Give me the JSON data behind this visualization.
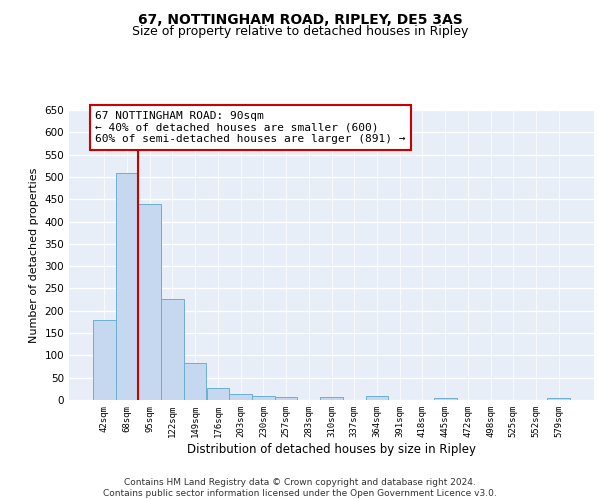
{
  "title1": "67, NOTTINGHAM ROAD, RIPLEY, DE5 3AS",
  "title2": "Size of property relative to detached houses in Ripley",
  "xlabel": "Distribution of detached houses by size in Ripley",
  "ylabel": "Number of detached properties",
  "categories": [
    "42sqm",
    "68sqm",
    "95sqm",
    "122sqm",
    "149sqm",
    "176sqm",
    "203sqm",
    "230sqm",
    "257sqm",
    "283sqm",
    "310sqm",
    "337sqm",
    "364sqm",
    "391sqm",
    "418sqm",
    "445sqm",
    "472sqm",
    "498sqm",
    "525sqm",
    "552sqm",
    "579sqm"
  ],
  "values": [
    180,
    508,
    440,
    226,
    84,
    28,
    14,
    9,
    7,
    0,
    7,
    0,
    8,
    0,
    0,
    5,
    0,
    0,
    0,
    0,
    5
  ],
  "bar_color": "#c5d8f0",
  "bar_edge_color": "#6baed6",
  "background_color": "#e8eef8",
  "grid_color": "#ffffff",
  "annotation_text": "67 NOTTINGHAM ROAD: 90sqm\n← 40% of detached houses are smaller (600)\n60% of semi-detached houses are larger (891) →",
  "annotation_box_color": "#ffffff",
  "annotation_box_edge_color": "#cc0000",
  "property_line_color": "#cc0000",
  "ylim": [
    0,
    650
  ],
  "yticks": [
    0,
    50,
    100,
    150,
    200,
    250,
    300,
    350,
    400,
    450,
    500,
    550,
    600,
    650
  ],
  "footer_text": "Contains HM Land Registry data © Crown copyright and database right 2024.\nContains public sector information licensed under the Open Government Licence v3.0.",
  "title1_fontsize": 10,
  "title2_fontsize": 9,
  "annotation_fontsize": 8,
  "footer_fontsize": 6.5,
  "ylabel_fontsize": 8,
  "xlabel_fontsize": 8.5
}
